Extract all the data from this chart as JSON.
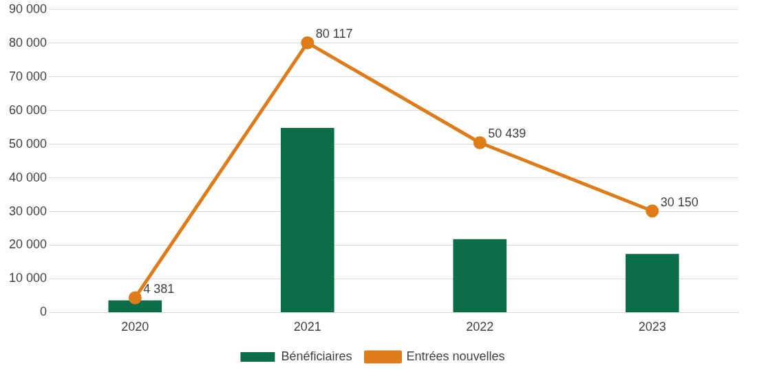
{
  "chart_data": {
    "type": "bar",
    "categories": [
      "2020",
      "2021",
      "2022",
      "2023"
    ],
    "series": [
      {
        "name": "Bénéficiaires",
        "color": "#0b6e49",
        "values": [
          3600,
          54800,
          21800,
          17400
        ]
      },
      {
        "name": "Entrées nouvelles",
        "type": "line",
        "color": "#e07b1a",
        "values": [
          4381,
          80117,
          50439,
          30150
        ],
        "value_labels": [
          "4 381",
          "80 117",
          "50 439",
          "30 150"
        ],
        "marker": "circle"
      }
    ],
    "ylim": [
      0,
      90000
    ],
    "yticks": [
      {
        "value": 0,
        "label": "0"
      },
      {
        "value": 10000,
        "label": "10 000"
      },
      {
        "value": 20000,
        "label": "20 000"
      },
      {
        "value": 30000,
        "label": "30 000"
      },
      {
        "value": 40000,
        "label": "40 000"
      },
      {
        "value": 50000,
        "label": "50 000"
      },
      {
        "value": 60000,
        "label": "60 000"
      },
      {
        "value": 70000,
        "label": "70 000"
      },
      {
        "value": 80000,
        "label": "80 000"
      },
      {
        "value": 90000,
        "label": "90 000"
      }
    ],
    "grid": "y",
    "legend": "bottom"
  }
}
